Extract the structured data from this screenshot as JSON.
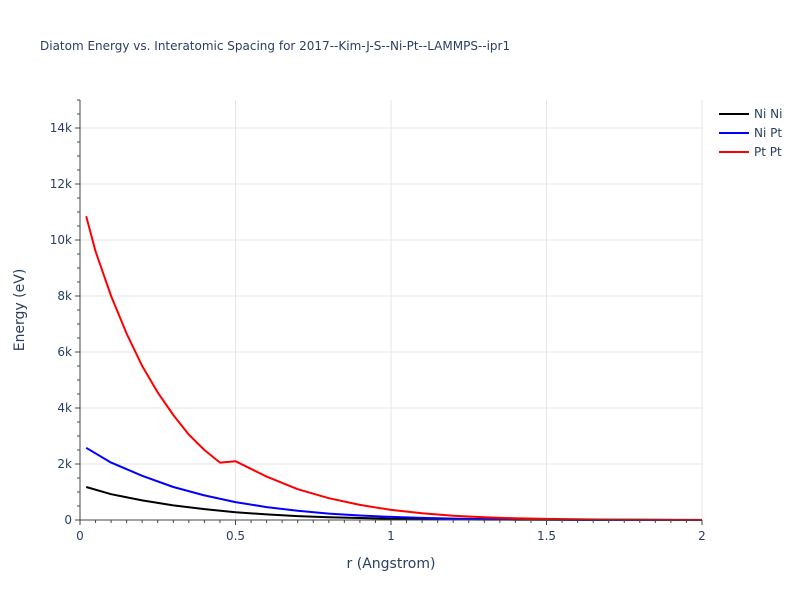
{
  "chart_data": {
    "type": "line",
    "title": "Diatom Energy vs. Interatomic Spacing for 2017--Kim-J-S--Ni-Pt--LAMMPS--ipr1",
    "xlabel": "r (Angstrom)",
    "ylabel": "Energy (eV)",
    "xlim": [
      0,
      2
    ],
    "ylim": [
      0,
      15000
    ],
    "x_ticks": [
      0,
      0.5,
      1,
      1.5,
      2
    ],
    "x_tick_labels": [
      "0",
      "0.5",
      "1",
      "1.5",
      "2"
    ],
    "y_ticks": [
      0,
      2000,
      4000,
      6000,
      8000,
      10000,
      12000,
      14000
    ],
    "y_tick_labels": [
      "0",
      "2k",
      "4k",
      "6k",
      "8k",
      "10k",
      "12k",
      "14k"
    ],
    "grid": true,
    "legend_position": "top-right",
    "series": [
      {
        "name": "Ni Ni",
        "color": "#000000",
        "x": [
          0.02,
          0.1,
          0.2,
          0.3,
          0.4,
          0.5,
          0.6,
          0.7,
          0.8,
          0.9,
          1.0,
          1.1,
          1.2,
          1.3,
          1.4,
          1.5,
          1.6,
          1.7,
          1.8,
          1.9,
          2.0
        ],
        "y": [
          1180,
          920,
          700,
          520,
          390,
          280,
          200,
          140,
          100,
          70,
          48,
          32,
          22,
          15,
          10,
          7,
          5,
          3,
          2,
          1,
          1
        ]
      },
      {
        "name": "Ni Pt",
        "color": "#0000ff",
        "x": [
          0.02,
          0.1,
          0.2,
          0.3,
          0.4,
          0.5,
          0.6,
          0.7,
          0.8,
          0.9,
          1.0,
          1.1,
          1.2,
          1.3,
          1.4,
          1.5,
          1.6,
          1.7,
          1.8,
          1.9,
          2.0
        ],
        "y": [
          2580,
          2050,
          1580,
          1180,
          880,
          640,
          460,
          330,
          230,
          160,
          110,
          75,
          50,
          33,
          22,
          14,
          9,
          6,
          4,
          2,
          1
        ]
      },
      {
        "name": "Pt Pt",
        "color": "#ff0000",
        "x": [
          0.02,
          0.05,
          0.1,
          0.15,
          0.2,
          0.25,
          0.3,
          0.35,
          0.4,
          0.45,
          0.5,
          0.6,
          0.7,
          0.8,
          0.9,
          1.0,
          1.1,
          1.2,
          1.3,
          1.4,
          1.5,
          1.6,
          1.7,
          1.8,
          1.9,
          2.0
        ],
        "y": [
          10850,
          9600,
          8000,
          6650,
          5500,
          4550,
          3750,
          3050,
          2500,
          2050,
          2100,
          1550,
          1100,
          780,
          540,
          360,
          240,
          150,
          95,
          60,
          38,
          24,
          15,
          9,
          5,
          3
        ]
      }
    ]
  }
}
